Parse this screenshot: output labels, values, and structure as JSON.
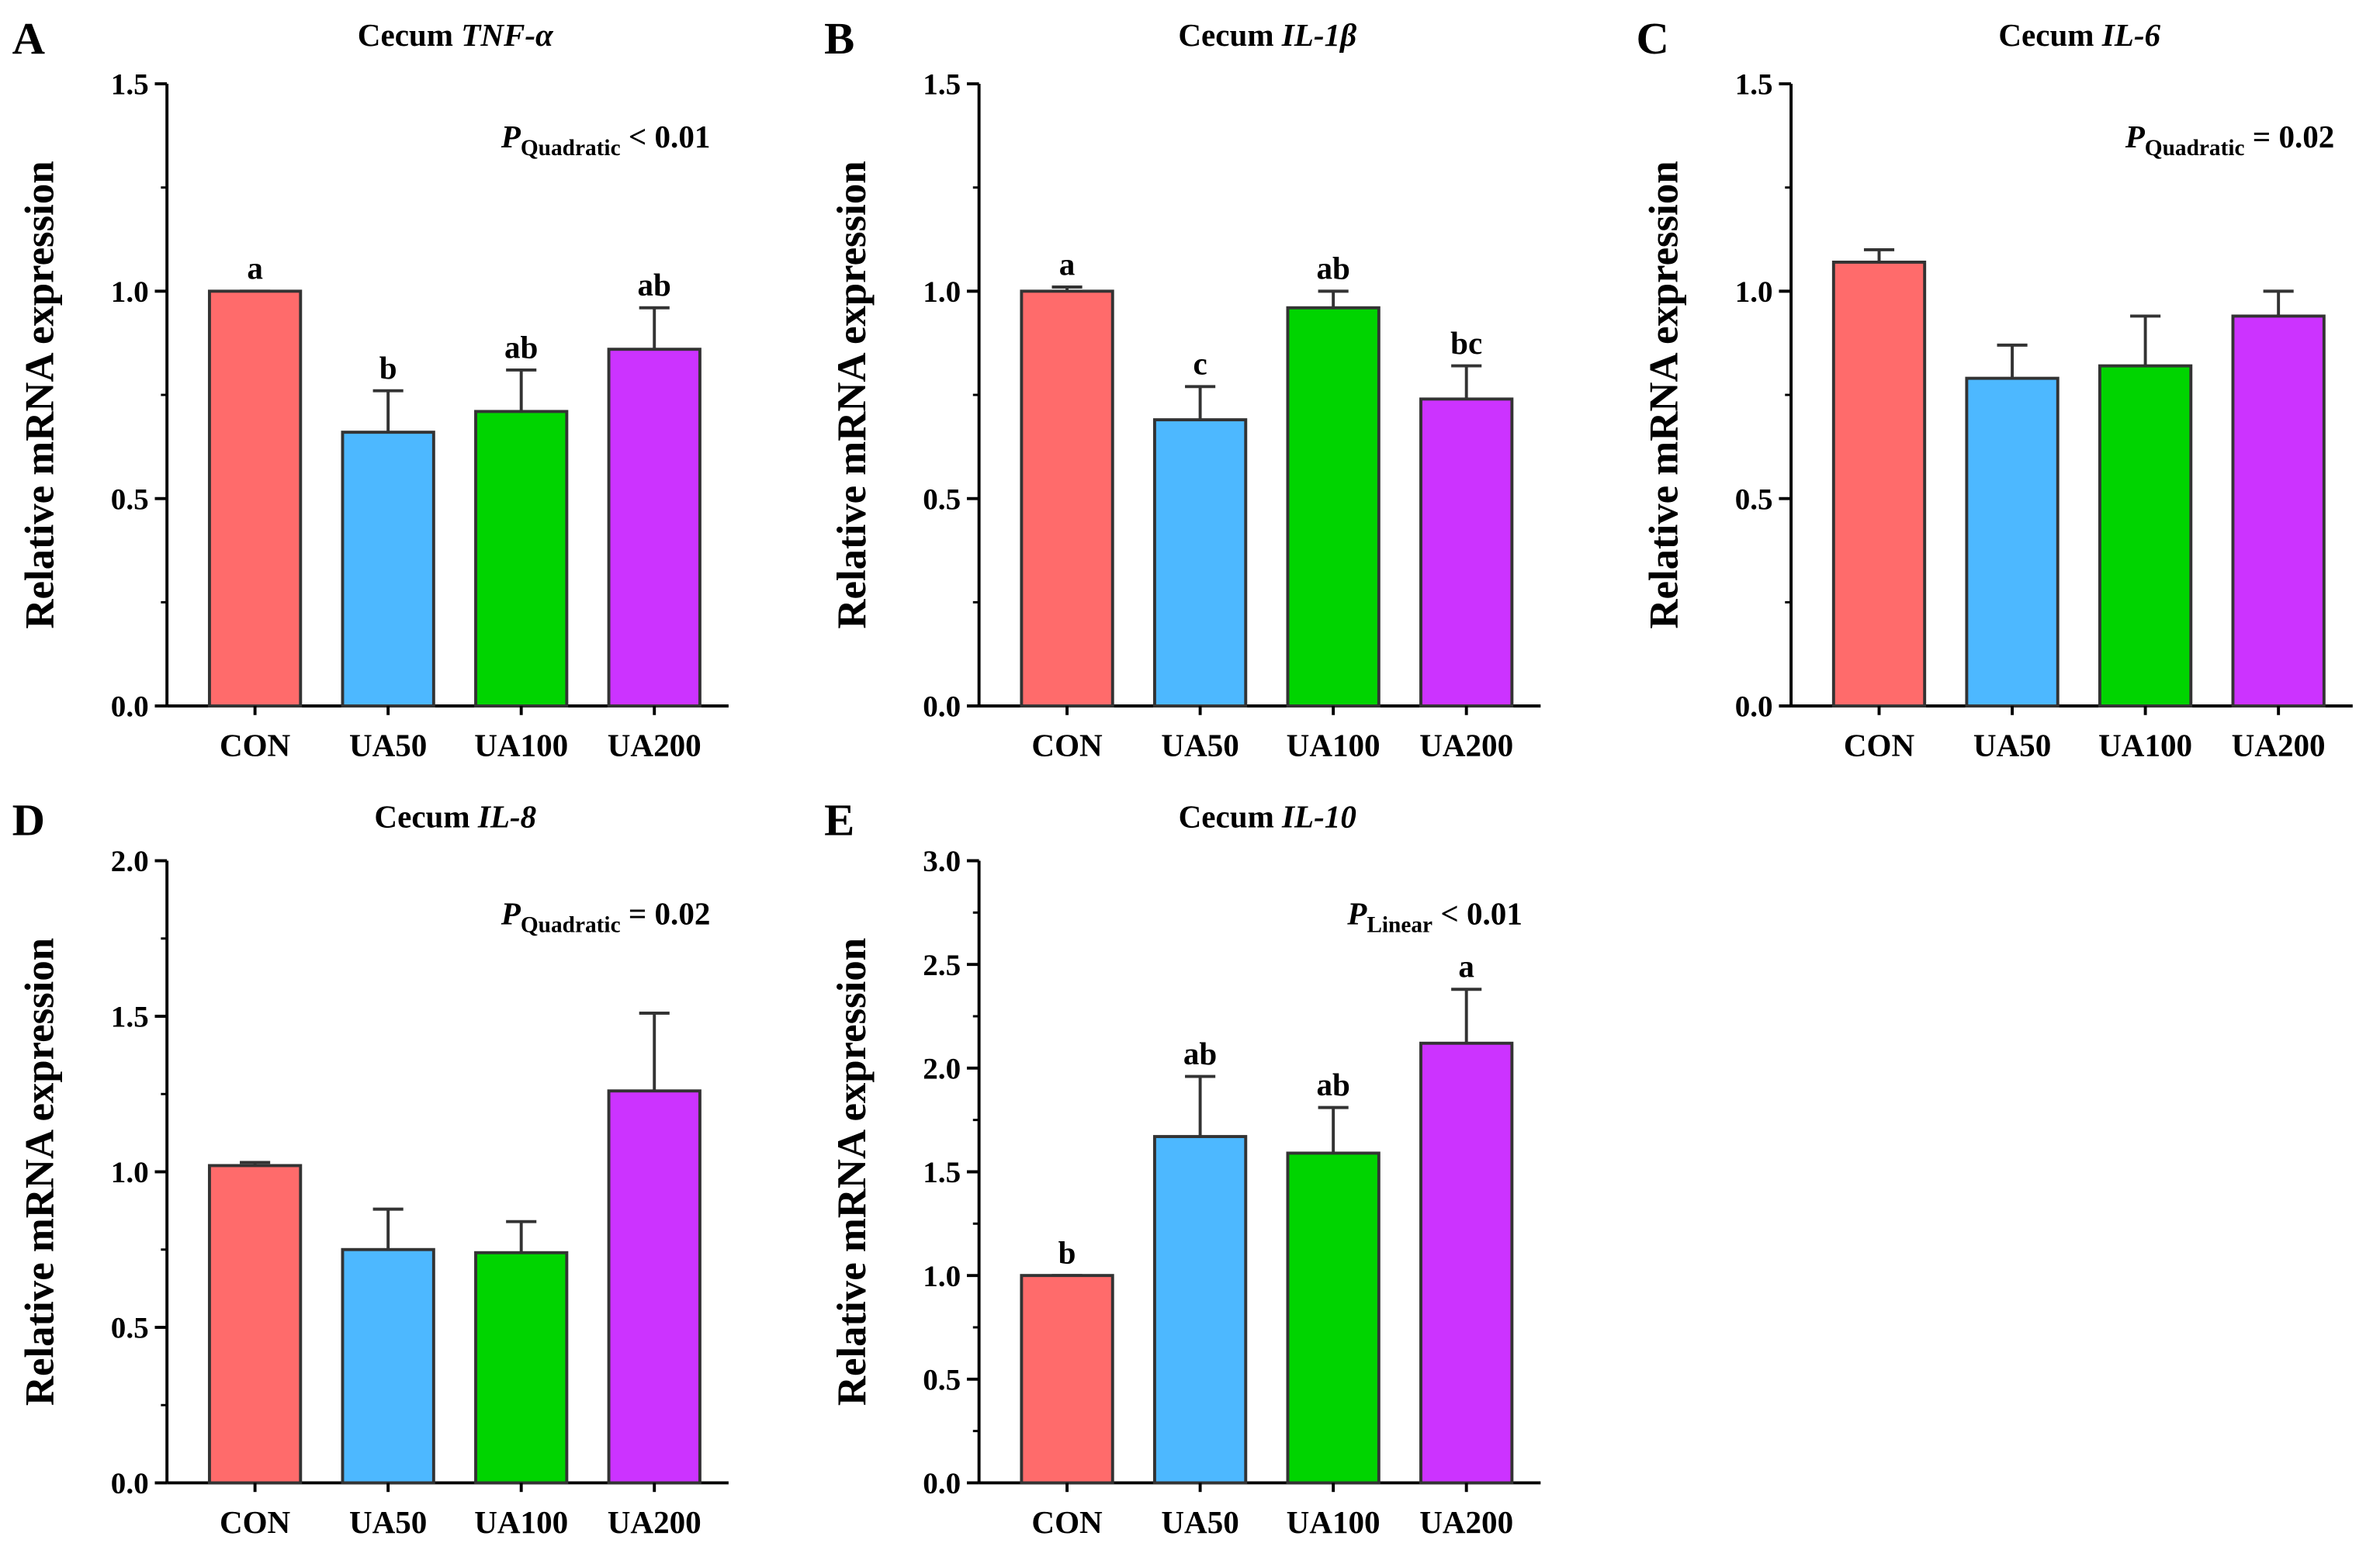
{
  "chart_data": [
    {
      "type": "bar",
      "panel": "A",
      "title_prefix": "Cecum",
      "title_gene": "TNF-α",
      "ylabel": "Relative mRNA expression",
      "ylim": [
        0,
        1.5
      ],
      "yticks": [
        "0.0",
        "0.5",
        "1.0",
        "1.5"
      ],
      "categories": [
        "CON",
        "UA50",
        "UA100",
        "UA200"
      ],
      "values": [
        1.0,
        0.66,
        0.71,
        0.86
      ],
      "errors": [
        0.0,
        0.1,
        0.1,
        0.1
      ],
      "letters": [
        "a",
        "b",
        "ab",
        "ab"
      ],
      "annotation": {
        "p": "P",
        "sub": "Quadratic",
        "text": "< 0.01"
      }
    },
    {
      "type": "bar",
      "panel": "B",
      "title_prefix": "Cecum",
      "title_gene": "IL-1β",
      "ylabel": "Relative mRNA expression",
      "ylim": [
        0,
        1.5
      ],
      "yticks": [
        "0.0",
        "0.5",
        "1.0",
        "1.5"
      ],
      "categories": [
        "CON",
        "UA50",
        "UA100",
        "UA200"
      ],
      "values": [
        1.0,
        0.69,
        0.96,
        0.74
      ],
      "errors": [
        0.01,
        0.08,
        0.04,
        0.08
      ],
      "letters": [
        "a",
        "c",
        "ab",
        "bc"
      ],
      "annotation": null
    },
    {
      "type": "bar",
      "panel": "C",
      "title_prefix": "Cecum",
      "title_gene": "IL-6",
      "ylabel": "Relative mRNA expression",
      "ylim": [
        0,
        1.5
      ],
      "yticks": [
        "0.0",
        "0.5",
        "1.0",
        "1.5"
      ],
      "categories": [
        "CON",
        "UA50",
        "UA100",
        "UA200"
      ],
      "values": [
        1.07,
        0.79,
        0.82,
        0.94
      ],
      "errors": [
        0.03,
        0.08,
        0.12,
        0.06
      ],
      "letters": [
        "",
        "",
        "",
        ""
      ],
      "annotation": {
        "p": "P",
        "sub": "Quadratic",
        "text": "= 0.02"
      }
    },
    {
      "type": "bar",
      "panel": "D",
      "title_prefix": "Cecum",
      "title_gene": "IL-8",
      "ylabel": "Relative mRNA expression",
      "ylim": [
        0,
        2.0
      ],
      "yticks": [
        "0.0",
        "0.5",
        "1.0",
        "1.5",
        "2.0"
      ],
      "categories": [
        "CON",
        "UA50",
        "UA100",
        "UA200"
      ],
      "values": [
        1.02,
        0.75,
        0.74,
        1.26
      ],
      "errors": [
        0.01,
        0.13,
        0.1,
        0.25
      ],
      "letters": [
        "",
        "",
        "",
        ""
      ],
      "annotation": {
        "p": "P",
        "sub": "Quadratic",
        "text": "= 0.02"
      }
    },
    {
      "type": "bar",
      "panel": "E",
      "title_prefix": "Cecum",
      "title_gene": "IL-10",
      "ylabel": "Relative mRNA expression",
      "ylim": [
        0,
        3.0
      ],
      "yticks": [
        "0.0",
        "0.5",
        "1.0",
        "1.5",
        "2.0",
        "2.5",
        "3.0"
      ],
      "categories": [
        "CON",
        "UA50",
        "UA100",
        "UA200"
      ],
      "values": [
        1.0,
        1.67,
        1.59,
        2.12
      ],
      "errors": [
        0.0,
        0.29,
        0.22,
        0.26
      ],
      "letters": [
        "b",
        "ab",
        "ab",
        "a"
      ],
      "annotation": {
        "p": "P",
        "sub": "Linear",
        "text": "< 0.01"
      }
    }
  ],
  "colors": [
    "#FF6B6B",
    "#4DB8FF",
    "#00D400",
    "#CC33FF"
  ]
}
